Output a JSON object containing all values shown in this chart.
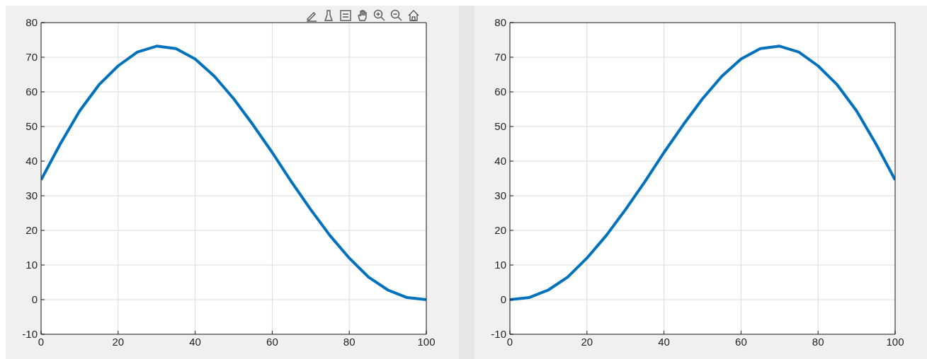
{
  "chart_data": [
    {
      "type": "line",
      "x": [
        0,
        5,
        10,
        15,
        20,
        25,
        30,
        35,
        40,
        45,
        50,
        55,
        60,
        65,
        70,
        75,
        80,
        85,
        90,
        95,
        100
      ],
      "series": [
        {
          "color": "#0072bd",
          "values": [
            34.6,
            45,
            54.5,
            62,
            67.5,
            71.5,
            73.2,
            72.5,
            69.5,
            64.5,
            58,
            50.5,
            42.5,
            34,
            26,
            18.5,
            12,
            6.5,
            2.8,
            0.6,
            0
          ]
        }
      ],
      "xlim": [
        0,
        100
      ],
      "xticks": [
        0,
        20,
        40,
        60,
        80,
        100
      ],
      "ylim": [
        -10,
        80
      ],
      "yticks": [
        -10,
        0,
        10,
        20,
        30,
        40,
        50,
        60,
        70,
        80
      ],
      "grid": true,
      "marker": "none",
      "line_style": "solid"
    },
    {
      "type": "line",
      "x": [
        0,
        5,
        10,
        15,
        20,
        25,
        30,
        35,
        40,
        45,
        50,
        55,
        60,
        65,
        70,
        75,
        80,
        85,
        90,
        95,
        100
      ],
      "series": [
        {
          "color": "#0072bd",
          "values": [
            0,
            0.6,
            2.8,
            6.5,
            12,
            18.5,
            26,
            34,
            42.5,
            50.5,
            58,
            64.5,
            69.5,
            72.5,
            73.2,
            71.5,
            67.5,
            62,
            54.5,
            45,
            34.6
          ]
        }
      ],
      "xlim": [
        0,
        100
      ],
      "xticks": [
        0,
        20,
        40,
        60,
        80,
        100
      ],
      "ylim": [
        -10,
        80
      ],
      "yticks": [
        -10,
        0,
        10,
        20,
        30,
        40,
        50,
        60,
        70,
        80
      ],
      "grid": true,
      "marker": "none",
      "line_style": "solid"
    }
  ]
}
